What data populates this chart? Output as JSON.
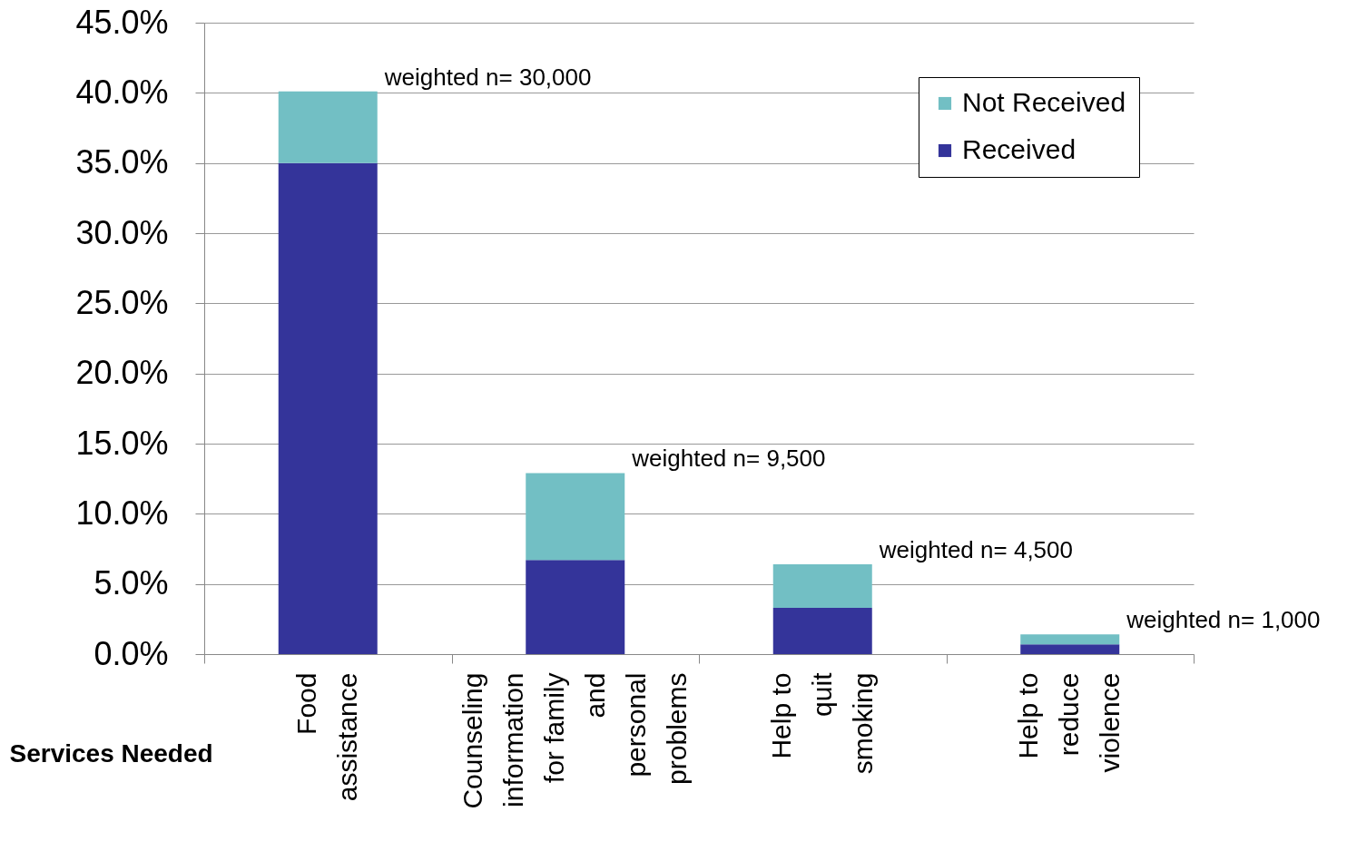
{
  "chart_data": {
    "type": "bar",
    "stacked": true,
    "xlabel": "Services Needed",
    "categories": [
      "Food assistance",
      "Counseling information for family and personal problems",
      "Help to quit smoking",
      "Help to reduce violence"
    ],
    "series": [
      {
        "name": "Received",
        "color": "#34349a",
        "values": [
          35.0,
          6.7,
          3.3,
          0.7
        ]
      },
      {
        "name": "Not Received",
        "color": "#72bfc4",
        "values": [
          5.1,
          6.2,
          3.1,
          0.7
        ]
      }
    ],
    "ylim": [
      0,
      45
    ],
    "yticks": [
      {
        "value": 0,
        "label": "0.0%"
      },
      {
        "value": 5,
        "label": "5.0%"
      },
      {
        "value": 10,
        "label": "10.0%"
      },
      {
        "value": 15,
        "label": "15.0%"
      },
      {
        "value": 20,
        "label": "20.0%"
      },
      {
        "value": 25,
        "label": "25.0%"
      },
      {
        "value": 30,
        "label": "30.0%"
      },
      {
        "value": 35,
        "label": "35.0%"
      },
      {
        "value": 40,
        "label": "40.0%"
      },
      {
        "value": 45,
        "label": "45.0%"
      }
    ],
    "grid": "y",
    "legend": "top right",
    "annotations": [
      {
        "text": "weighted n= 30,000",
        "x": "Food assistance",
        "y": 40.1
      },
      "weighted n= 9,500",
      {
        "text": "weighted n= 4,500",
        "x": "Help to quit smoking",
        "y": 6.4
      },
      {
        "text": "weighted n= 1,000",
        "x": "Help to reduce violence",
        "y": 1.4
      }
    ]
  }
}
